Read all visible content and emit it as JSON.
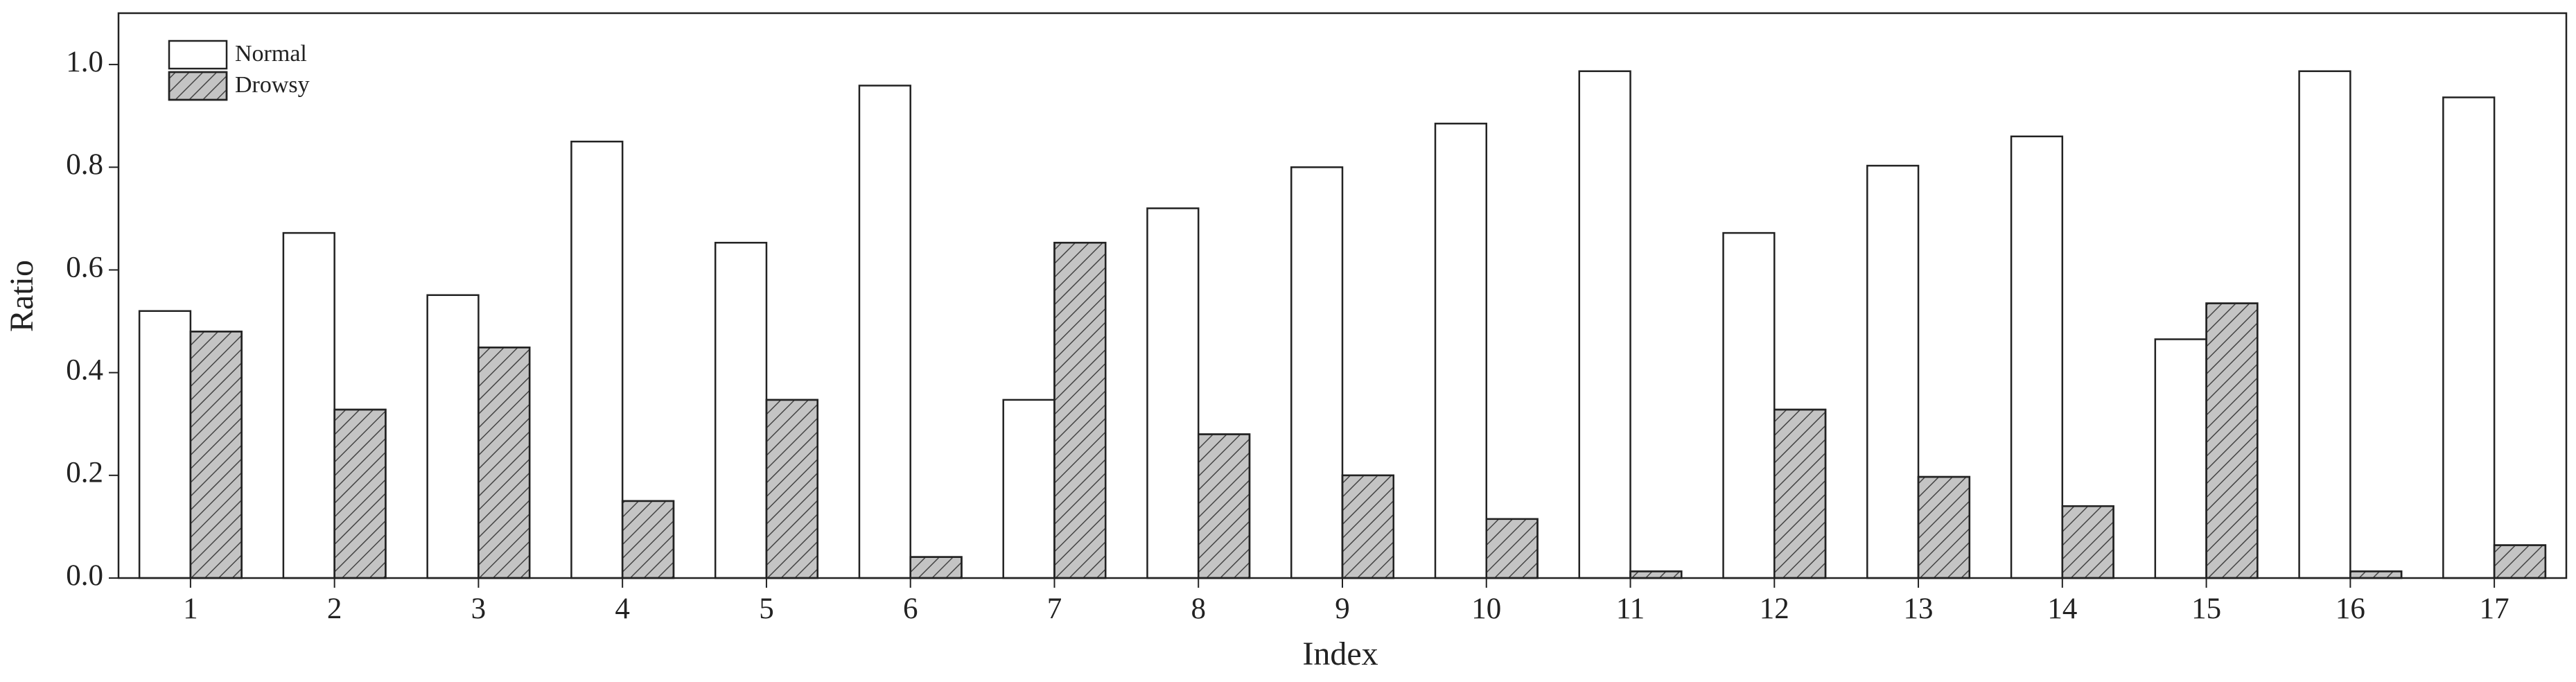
{
  "chart_data": {
    "type": "grouped-bar",
    "x_label": "Index",
    "y_label": "Ratio",
    "categories": [
      "1",
      "2",
      "3",
      "4",
      "5",
      "6",
      "7",
      "8",
      "9",
      "10",
      "11",
      "12",
      "13",
      "14",
      "15",
      "16",
      "17"
    ],
    "series": [
      {
        "name": "Normal",
        "color": "#ffffff",
        "hatch": false,
        "values": [
          0.52,
          0.672,
          0.551,
          0.85,
          0.653,
          0.959,
          0.347,
          0.72,
          0.8,
          0.885,
          0.987,
          0.672,
          0.803,
          0.86,
          0.465,
          0.987,
          0.936
        ]
      },
      {
        "name": "Drowsy",
        "color": "#c4c4c4",
        "hatch": true,
        "values": [
          0.48,
          0.328,
          0.449,
          0.15,
          0.347,
          0.041,
          0.653,
          0.28,
          0.2,
          0.115,
          0.013,
          0.328,
          0.197,
          0.14,
          0.535,
          0.013,
          0.064
        ]
      }
    ],
    "ylim": [
      0,
      1.1
    ],
    "yticks": [
      {
        "value": 0,
        "label": "0.0"
      },
      0.2,
      0.4,
      0.6,
      0.8,
      {
        "value": 1,
        "label": "1.0"
      }
    ],
    "grid": false,
    "legend": "top-left"
  }
}
